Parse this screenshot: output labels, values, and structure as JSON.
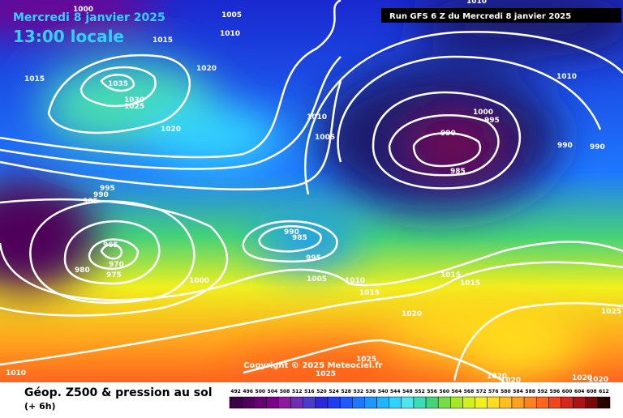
{
  "header": {
    "title": "Mercredi 8 janvier 2025",
    "time": "13:00 locale",
    "run": "Run GFS 6 Z du Mercredi 8 janvier 2025"
  },
  "map": {
    "isobar_labels": [
      "1000",
      "1005",
      "1010",
      "1015",
      "1015",
      "1020",
      "1035",
      "1030",
      "1025",
      "1020",
      "1010",
      "1005",
      "1010",
      "1010",
      "1000",
      "995",
      "990",
      "985",
      "990",
      "990",
      "995",
      "990",
      "985",
      "965",
      "970",
      "975",
      "980",
      "1000",
      "990",
      "985",
      "995",
      "1005",
      "1010",
      "1015",
      "1015",
      "1015",
      "1020",
      "1025",
      "1025",
      "1025",
      "1010",
      "1020",
      "1020",
      "1020",
      "1020"
    ],
    "copyright": "Copyright © 2025 Meteociel.fr"
  },
  "footer": {
    "caption": "Géop. Z500 & pression au sol",
    "step": "(+ 6h)"
  },
  "legend": {
    "labels": [
      "492",
      "496",
      "500",
      "504",
      "508",
      "512",
      "516",
      "520",
      "524",
      "528",
      "532",
      "536",
      "540",
      "544",
      "548",
      "552",
      "556",
      "560",
      "564",
      "568",
      "572",
      "576",
      "580",
      "584",
      "588",
      "592",
      "596",
      "600",
      "604",
      "608",
      "612"
    ],
    "colors": [
      "#3c0046",
      "#50005a",
      "#640070",
      "#7a0088",
      "#8c1a9c",
      "#6e2eb4",
      "#4a3cc8",
      "#2828d8",
      "#1e3cf0",
      "#1e5aff",
      "#1e78ff",
      "#1e96ff",
      "#1eb4ff",
      "#32d2ff",
      "#50e6f0",
      "#3cdcb4",
      "#46d278",
      "#78dc46",
      "#aae628",
      "#d2f01e",
      "#f0f01e",
      "#ffdc1e",
      "#ffbe1e",
      "#ffa01e",
      "#ff821e",
      "#ff641e",
      "#f0461e",
      "#d2281e",
      "#aa1414",
      "#780a0a",
      "#280000"
    ]
  }
}
